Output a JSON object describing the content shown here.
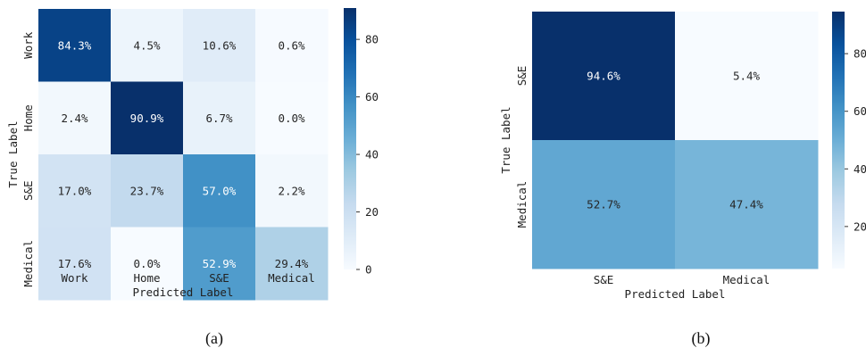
{
  "chart_data": [
    {
      "type": "heatmap",
      "panel_label": "(a)",
      "xlabel": "Predicted Label",
      "ylabel": "True Label",
      "x_categories": [
        "Work",
        "Home",
        "S&E",
        "Medical"
      ],
      "y_categories": [
        "Work",
        "Home",
        "S&E",
        "Medical"
      ],
      "values": [
        [
          84.3,
          4.5,
          10.6,
          0.6
        ],
        [
          2.4,
          90.9,
          6.7,
          0.0
        ],
        [
          17.0,
          23.7,
          57.0,
          2.2
        ],
        [
          17.6,
          0.0,
          52.9,
          29.4
        ]
      ],
      "cell_labels": [
        [
          "84.3%",
          "4.5%",
          "10.6%",
          "0.6%"
        ],
        [
          "2.4%",
          "90.9%",
          "6.7%",
          "0.0%"
        ],
        [
          "17.0%",
          "23.7%",
          "57.0%",
          "2.2%"
        ],
        [
          "17.6%",
          "0.0%",
          "52.9%",
          "29.4%"
        ]
      ],
      "colorbar": {
        "min": 0,
        "max": 90.9,
        "ticks": [
          0,
          20,
          40,
          60,
          80
        ],
        "colormap": "Blues"
      }
    },
    {
      "type": "heatmap",
      "panel_label": "(b)",
      "xlabel": "Predicted Label",
      "ylabel": "True Label",
      "x_categories": [
        "S&E",
        "Medical"
      ],
      "y_categories": [
        "S&E",
        "Medical"
      ],
      "values": [
        [
          94.6,
          5.4
        ],
        [
          52.7,
          47.4
        ]
      ],
      "cell_labels": [
        [
          "94.6%",
          "5.4%"
        ],
        [
          "52.7%",
          "47.4%"
        ]
      ],
      "colorbar": {
        "min": 5.4,
        "max": 94.6,
        "ticks": [
          20,
          40,
          60,
          80
        ],
        "colormap": "Blues"
      }
    }
  ]
}
